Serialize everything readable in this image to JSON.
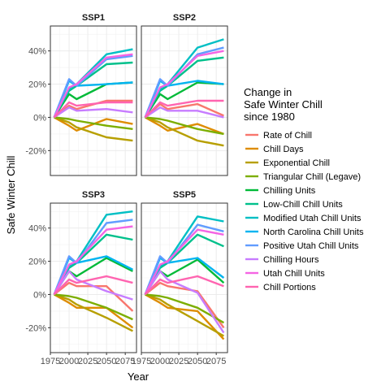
{
  "chart_data": {
    "type": "line",
    "xlabel": "Year",
    "ylabel": "Safe Winter Chill",
    "x_ticks": [
      1975,
      2000,
      2025,
      2050,
      2075
    ],
    "y_ticks": [
      -20,
      0,
      20,
      40
    ],
    "y_tick_labels": [
      "-20%",
      "0%",
      "20%",
      "40%"
    ],
    "xlim": [
      1975,
      2090
    ],
    "ylim": [
      -35,
      55
    ],
    "grid": true,
    "legend": {
      "title": [
        "Change in",
        "Safe Winter Chill",
        "since 1980"
      ],
      "position": "right"
    },
    "x": [
      1980,
      2000,
      2010,
      2050,
      2085
    ],
    "series_names": [
      "Rate of Chill",
      "Chill Days",
      "Exponential Chill",
      "Triangular Chill (Legave)",
      "Chilling Units",
      "Low-Chill Chill Units",
      "Modified Utah Chill Units",
      "North Carolina Chill Units",
      "Positive Utah Chill Units",
      "Chilling Hours",
      "Utah Chill Units",
      "Chill Portions"
    ],
    "series_colors": [
      "#F8766D",
      "#DE8C00",
      "#B79F00",
      "#7CAE00",
      "#00BA38",
      "#00C08B",
      "#00BFC4",
      "#00B4F0",
      "#619CFF",
      "#C77CFF",
      "#F564E3",
      "#FF64B0"
    ],
    "panels": [
      {
        "title": "SSP1",
        "series": [
          {
            "name": "Rate of Chill",
            "values": [
              0,
              7,
              5,
              10,
              10
            ]
          },
          {
            "name": "Chill Days",
            "values": [
              0,
              -5,
              -8,
              -1,
              -4
            ]
          },
          {
            "name": "Exponential Chill",
            "values": [
              0,
              -3,
              -6,
              -12,
              -14
            ]
          },
          {
            "name": "Triangular Chill (Legave)",
            "values": [
              0,
              -1,
              -2,
              -5,
              -7
            ]
          },
          {
            "name": "Chilling Units",
            "values": [
              0,
              14,
              11,
              20,
              21
            ]
          },
          {
            "name": "Low-Chill Chill Units",
            "values": [
              0,
              16,
              19,
              32,
              33
            ]
          },
          {
            "name": "Modified Utah Chill Units",
            "values": [
              0,
              17,
              20,
              38,
              41
            ]
          },
          {
            "name": "North Carolina Chill Units",
            "values": [
              0,
              22,
              19,
              20,
              21
            ]
          },
          {
            "name": "Positive Utah Chill Units",
            "values": [
              0,
              23,
              19,
              35,
              37
            ]
          },
          {
            "name": "Chilling Hours",
            "values": [
              0,
              6,
              4,
              5,
              3
            ]
          },
          {
            "name": "Utah Chill Units",
            "values": [
              0,
              18,
              20,
              36,
              38
            ]
          },
          {
            "name": "Chill Portions",
            "values": [
              0,
              9,
              7,
              9,
              9
            ]
          }
        ]
      },
      {
        "title": "SSP2",
        "series": [
          {
            "name": "Rate of Chill",
            "values": [
              0,
              8,
              5,
              8,
              1
            ]
          },
          {
            "name": "Chill Days",
            "values": [
              0,
              -5,
              -8,
              -4,
              -10
            ]
          },
          {
            "name": "Exponential Chill",
            "values": [
              0,
              -3,
              -6,
              -14,
              -17
            ]
          },
          {
            "name": "Triangular Chill (Legave)",
            "values": [
              0,
              -1,
              -2,
              -7,
              -10
            ]
          },
          {
            "name": "Chilling Units",
            "values": [
              0,
              14,
              11,
              21,
              20
            ]
          },
          {
            "name": "Low-Chill Chill Units",
            "values": [
              0,
              16,
              19,
              34,
              36
            ]
          },
          {
            "name": "Modified Utah Chill Units",
            "values": [
              0,
              17,
              20,
              42,
              47
            ]
          },
          {
            "name": "North Carolina Chill Units",
            "values": [
              0,
              22,
              19,
              22,
              20
            ]
          },
          {
            "name": "Positive Utah Chill Units",
            "values": [
              0,
              23,
              19,
              38,
              42
            ]
          },
          {
            "name": "Chilling Hours",
            "values": [
              0,
              6,
              4,
              4,
              0
            ]
          },
          {
            "name": "Utah Chill Units",
            "values": [
              0,
              18,
              20,
              37,
              40
            ]
          },
          {
            "name": "Chill Portions",
            "values": [
              0,
              9,
              7,
              10,
              10
            ]
          }
        ]
      },
      {
        "title": "SSP3",
        "series": [
          {
            "name": "Rate of Chill",
            "values": [
              0,
              7,
              5,
              5,
              -10
            ]
          },
          {
            "name": "Chill Days",
            "values": [
              0,
              -5,
              -8,
              -8,
              -20
            ]
          },
          {
            "name": "Exponential Chill",
            "values": [
              0,
              -3,
              -6,
              -14,
              -22
            ]
          },
          {
            "name": "Triangular Chill (Legave)",
            "values": [
              0,
              -1,
              -2,
              -8,
              -15
            ]
          },
          {
            "name": "Chilling Units",
            "values": [
              0,
              14,
              11,
              22,
              14
            ]
          },
          {
            "name": "Low-Chill Chill Units",
            "values": [
              0,
              16,
              19,
              36,
              33
            ]
          },
          {
            "name": "Modified Utah Chill Units",
            "values": [
              0,
              17,
              20,
              48,
              50
            ]
          },
          {
            "name": "North Carolina Chill Units",
            "values": [
              0,
              22,
              19,
              23,
              15
            ]
          },
          {
            "name": "Positive Utah Chill Units",
            "values": [
              0,
              23,
              19,
              43,
              45
            ]
          },
          {
            "name": "Chilling Hours",
            "values": [
              0,
              14,
              9,
              2,
              -3
            ]
          },
          {
            "name": "Utah Chill Units",
            "values": [
              0,
              18,
              20,
              39,
              41
            ]
          },
          {
            "name": "Chill Portions",
            "values": [
              0,
              9,
              7,
              11,
              7
            ]
          }
        ]
      },
      {
        "title": "SSP5",
        "series": [
          {
            "name": "Rate of Chill",
            "values": [
              0,
              7,
              5,
              2,
              -20
            ]
          },
          {
            "name": "Chill Days",
            "values": [
              0,
              -5,
              -8,
              -10,
              -27
            ]
          },
          {
            "name": "Exponential Chill",
            "values": [
              0,
              -3,
              -6,
              -16,
              -25
            ]
          },
          {
            "name": "Triangular Chill (Legave)",
            "values": [
              0,
              -1,
              -2,
              -8,
              -17
            ]
          },
          {
            "name": "Chilling Units",
            "values": [
              0,
              14,
              11,
              21,
              7
            ]
          },
          {
            "name": "Low-Chill Chill Units",
            "values": [
              0,
              16,
              19,
              36,
              29
            ]
          },
          {
            "name": "Modified Utah Chill Units",
            "values": [
              0,
              17,
              20,
              47,
              44
            ]
          },
          {
            "name": "North Carolina Chill Units",
            "values": [
              0,
              22,
              19,
              22,
              10
            ]
          },
          {
            "name": "Positive Utah Chill Units",
            "values": [
              0,
              23,
              19,
              42,
              38
            ]
          },
          {
            "name": "Chilling Hours",
            "values": [
              0,
              14,
              9,
              1,
              -23
            ]
          },
          {
            "name": "Utah Chill Units",
            "values": [
              0,
              18,
              20,
              39,
              36
            ]
          },
          {
            "name": "Chill Portions",
            "values": [
              0,
              9,
              7,
              11,
              5
            ]
          }
        ]
      }
    ]
  }
}
